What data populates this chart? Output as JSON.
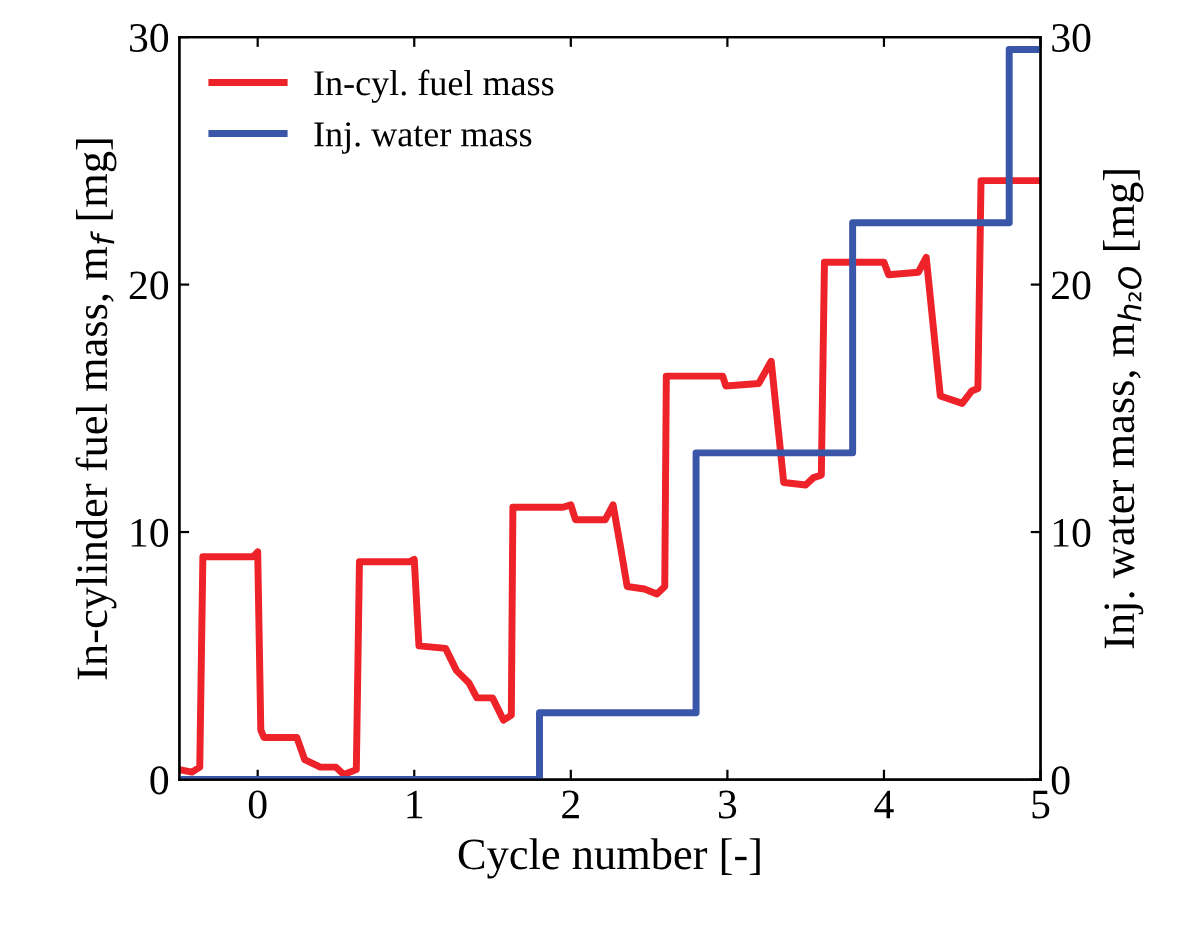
{
  "chart_data": {
    "type": "line",
    "xlabel": "Cycle number [-]",
    "ylabel": "In-cylinder fuel mass, m$_{f}$ [mg]",
    "y2label": "Inj. water mass, m$_{h₂O}$ [mg]",
    "xlim": [
      -0.5,
      5
    ],
    "xticks": [
      0,
      1,
      2,
      3,
      4,
      5
    ],
    "ylim": [
      0,
      30
    ],
    "yticks": [
      0,
      10,
      20,
      30
    ],
    "y2lim": [
      0,
      30
    ],
    "y2ticks": [
      0,
      10,
      20,
      30
    ],
    "grid": false,
    "legend": "top left",
    "marker": "none",
    "line_style": "solid",
    "series": [
      {
        "name": "In-cyl. fuel mass",
        "color": "#ee2229",
        "x": [
          -0.5,
          -0.42,
          -0.37,
          -0.35,
          -0.03,
          0.0,
          0.02,
          0.04,
          0.25,
          0.3,
          0.4,
          0.5,
          0.55,
          0.63,
          0.65,
          0.97,
          1.0,
          1.03,
          1.2,
          1.27,
          1.35,
          1.4,
          1.5,
          1.57,
          1.62,
          1.63,
          1.95,
          2.0,
          2.03,
          2.22,
          2.27,
          2.32,
          2.36,
          2.47,
          2.55,
          2.6,
          2.61,
          2.97,
          2.99,
          3.2,
          3.28,
          3.36,
          3.5,
          3.55,
          3.6,
          3.62,
          4.0,
          4.03,
          4.22,
          4.27,
          4.36,
          4.5,
          4.56,
          4.6,
          4.62,
          5.0
        ],
        "values": [
          0.4,
          0.3,
          0.5,
          9.0,
          9.0,
          9.2,
          2.0,
          1.7,
          1.7,
          0.8,
          0.5,
          0.5,
          0.2,
          0.4,
          8.8,
          8.8,
          8.9,
          5.4,
          5.3,
          4.4,
          3.9,
          3.3,
          3.3,
          2.4,
          2.6,
          11.0,
          11.0,
          11.1,
          10.5,
          10.5,
          11.1,
          9.3,
          7.8,
          7.7,
          7.5,
          7.8,
          16.3,
          16.3,
          15.9,
          16.0,
          16.9,
          12.0,
          11.9,
          12.2,
          12.3,
          20.9,
          20.9,
          20.4,
          20.5,
          21.1,
          15.5,
          15.2,
          15.7,
          15.8,
          24.2,
          24.2
        ]
      },
      {
        "name": "Inj. water mass",
        "color": "#3a56a8",
        "type": "step",
        "axis": "y2",
        "x": [
          -0.5,
          1.8,
          2.8,
          3.8,
          4.8,
          5.0
        ],
        "values": [
          0,
          2.7,
          13.2,
          22.5,
          29.5,
          29.5
        ]
      }
    ]
  }
}
